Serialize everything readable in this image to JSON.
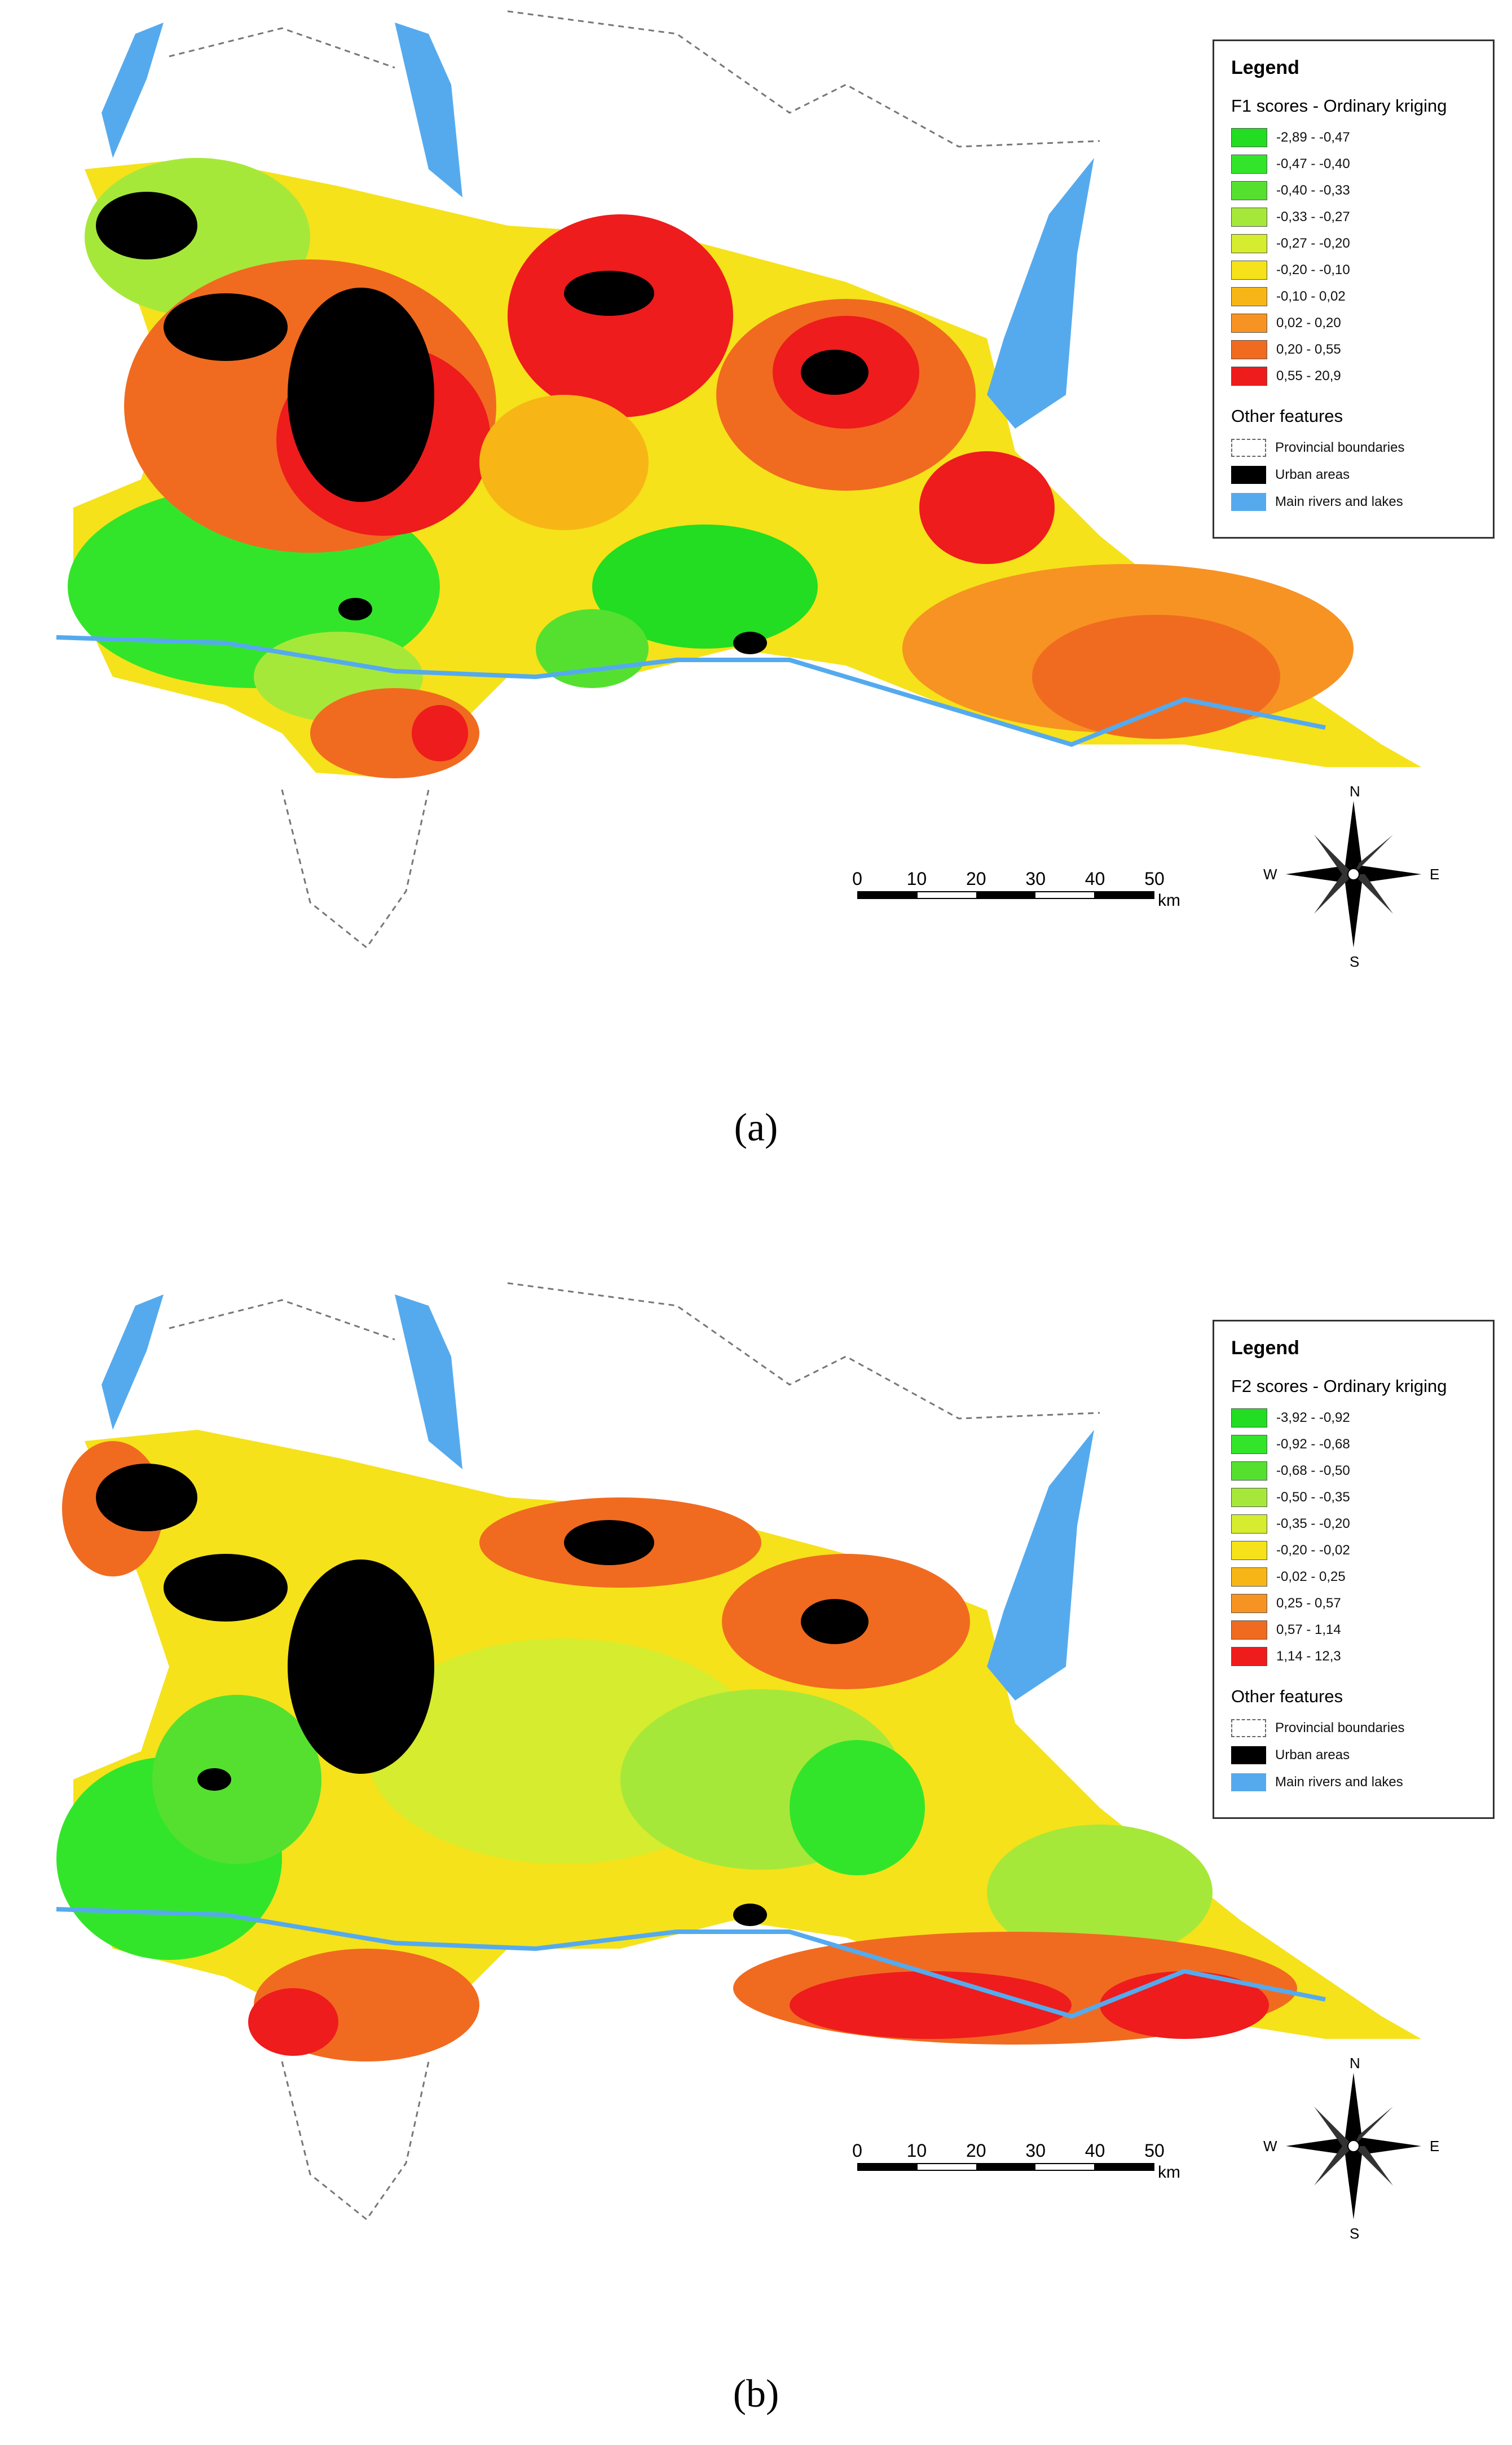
{
  "panels": [
    {
      "legend": {
        "title": "Legend",
        "subtitle": "F1 scores - Ordinary kriging",
        "classes": [
          {
            "range": "-2,89 - -0,47",
            "color": "#22dd22"
          },
          {
            "range": "-0,47 - -0,40",
            "color": "#33e52a"
          },
          {
            "range": "-0,40 - -0,33",
            "color": "#55e030"
          },
          {
            "range": "-0,33 - -0,27",
            "color": "#a6e83a"
          },
          {
            "range": "-0,27 - -0,20",
            "color": "#d6ec2e"
          },
          {
            "range": "-0,20 - -0,10",
            "color": "#f5e21a"
          },
          {
            "range": "-0,10 - 0,02",
            "color": "#f8b616"
          },
          {
            "range": "0,02 - 0,20",
            "color": "#f79322"
          },
          {
            "range": "0,20 - 0,55",
            "color": "#f06b20"
          },
          {
            "range": "0,55 - 20,9",
            "color": "#ee1c1c"
          }
        ],
        "features_title": "Other features",
        "features": [
          {
            "label": "Provincial boundaries",
            "kind": "dashed"
          },
          {
            "label": "Urban areas",
            "kind": "black"
          },
          {
            "label": "Main rivers and lakes",
            "kind": "blue"
          }
        ]
      },
      "caption": "(a)"
    },
    {
      "legend": {
        "title": "Legend",
        "subtitle": "F2 scores - Ordinary kriging",
        "classes": [
          {
            "range": "-3,92 - -0,92",
            "color": "#22dd22"
          },
          {
            "range": "-0,92 - -0,68",
            "color": "#33e52a"
          },
          {
            "range": "-0,68 - -0,50",
            "color": "#55e030"
          },
          {
            "range": "-0,50 - -0,35",
            "color": "#a6e83a"
          },
          {
            "range": "-0,35 - -0,20",
            "color": "#d6ec2e"
          },
          {
            "range": "-0,20 - -0,02",
            "color": "#f5e21a"
          },
          {
            "range": "-0,02 - 0,25",
            "color": "#f8b616"
          },
          {
            "range": "0,25 - 0,57",
            "color": "#f79322"
          },
          {
            "range": "0,57 - 1,14",
            "color": "#f06b20"
          },
          {
            "range": "1,14 - 12,3",
            "color": "#ee1c1c"
          }
        ],
        "features_title": "Other features",
        "features": [
          {
            "label": "Provincial boundaries",
            "kind": "dashed"
          },
          {
            "label": "Urban areas",
            "kind": "black"
          },
          {
            "label": "Main rivers and lakes",
            "kind": "blue"
          }
        ]
      },
      "caption": "(b)"
    }
  ],
  "scale": {
    "ticks": [
      "0",
      "10",
      "20",
      "30",
      "40",
      "50"
    ],
    "unit": "km"
  },
  "compass": {
    "n": "N",
    "s": "S",
    "e": "E",
    "w": "W"
  },
  "colors": {
    "water": "#55aaee",
    "urban": "#000000",
    "boundary": "#777777"
  }
}
